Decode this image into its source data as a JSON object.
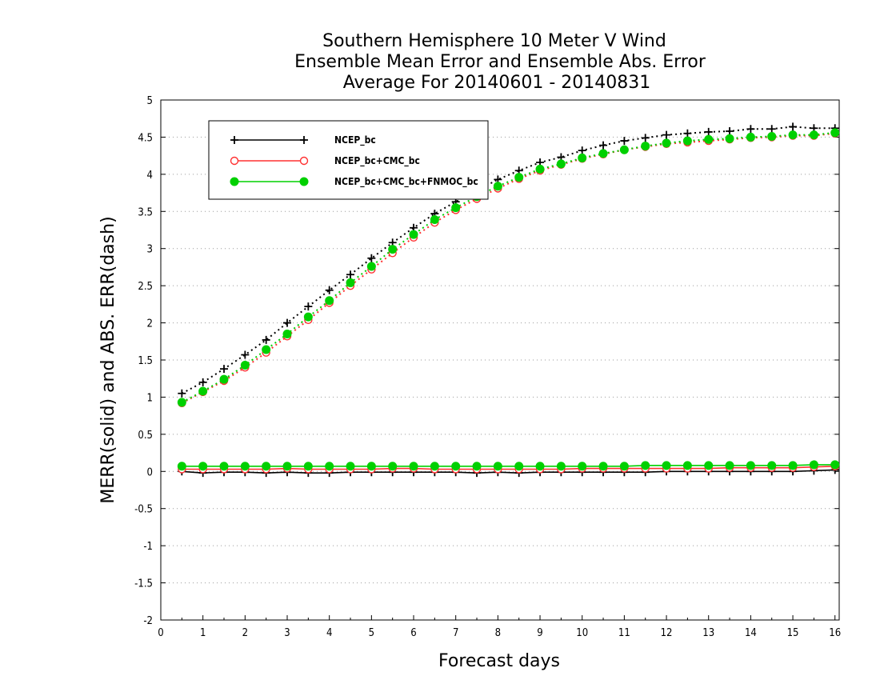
{
  "chart_data": {
    "type": "line",
    "title": [
      "Southern Hemisphere 10 Meter V Wind",
      "Ensemble Mean Error and Ensemble Abs. Error",
      "Average For 20140601 - 20140831"
    ],
    "xlabel": "Forecast days",
    "ylabel": "MERR(solid) and ABS. ERR(dash)",
    "xlim": [
      0,
      16.1
    ],
    "ylim": [
      -2,
      5
    ],
    "xticks": [
      0,
      1,
      2,
      3,
      4,
      5,
      6,
      7,
      8,
      9,
      10,
      11,
      12,
      13,
      14,
      15,
      16
    ],
    "yticks": [
      -2,
      -1.5,
      -1,
      -0.5,
      0,
      0.5,
      1,
      1.5,
      2,
      2.5,
      3,
      3.5,
      4,
      4.5,
      5
    ],
    "ytick_labels": [
      "-2",
      "-1.5",
      "-1",
      "-0.5",
      "0",
      "0.5",
      "1",
      "1.5",
      "2",
      "2.5",
      "3",
      "3.5",
      "4",
      "4.5",
      "5"
    ],
    "grid": "horizontal-dotted",
    "legend_position": "top-left",
    "x": [
      0.5,
      1,
      1.5,
      2,
      2.5,
      3,
      3.5,
      4,
      4.5,
      5,
      5.5,
      6,
      6.5,
      7,
      7.5,
      8,
      8.5,
      9,
      9.5,
      10,
      10.5,
      11,
      11.5,
      12,
      12.5,
      13,
      13.5,
      14,
      14.5,
      15,
      15.5,
      16
    ],
    "series": [
      {
        "name": "NCEP_bc",
        "color": "#000000",
        "marker": "plus",
        "abs_error": [
          1.05,
          1.2,
          1.38,
          1.57,
          1.77,
          2.0,
          2.22,
          2.44,
          2.65,
          2.87,
          3.08,
          3.28,
          3.47,
          3.63,
          3.78,
          3.93,
          4.05,
          4.16,
          4.23,
          4.32,
          4.39,
          4.45,
          4.49,
          4.53,
          4.55,
          4.57,
          4.58,
          4.61,
          4.61,
          4.64,
          4.62,
          4.62
        ],
        "mean_error": [
          0.0,
          -0.02,
          -0.01,
          -0.01,
          -0.02,
          -0.01,
          -0.02,
          -0.02,
          -0.01,
          -0.01,
          -0.01,
          -0.01,
          -0.01,
          -0.01,
          -0.02,
          -0.01,
          -0.02,
          -0.01,
          -0.01,
          -0.01,
          -0.01,
          -0.01,
          -0.01,
          0.0,
          0.0,
          0.0,
          0.0,
          0.0,
          0.0,
          0.0,
          0.01,
          0.02
        ]
      },
      {
        "name": "NCEP_bc+CMC_bc",
        "color": "#ff3030",
        "marker": "open-circle",
        "abs_error": [
          0.92,
          1.07,
          1.22,
          1.4,
          1.6,
          1.82,
          2.04,
          2.27,
          2.5,
          2.72,
          2.94,
          3.15,
          3.35,
          3.52,
          3.67,
          3.81,
          3.94,
          4.05,
          4.13,
          4.21,
          4.27,
          4.33,
          4.37,
          4.41,
          4.43,
          4.45,
          4.47,
          4.49,
          4.5,
          4.52,
          4.52,
          4.55
        ],
        "mean_error": [
          0.03,
          0.03,
          0.03,
          0.03,
          0.03,
          0.04,
          0.03,
          0.03,
          0.03,
          0.03,
          0.04,
          0.04,
          0.03,
          0.03,
          0.03,
          0.03,
          0.03,
          0.03,
          0.03,
          0.04,
          0.04,
          0.04,
          0.04,
          0.04,
          0.04,
          0.04,
          0.05,
          0.05,
          0.05,
          0.05,
          0.06,
          0.07
        ]
      },
      {
        "name": "NCEP_bc+CMC_bc+FNMOC_bc",
        "color": "#00d000",
        "marker": "filled-circle",
        "abs_error": [
          0.93,
          1.08,
          1.24,
          1.43,
          1.64,
          1.85,
          2.08,
          2.3,
          2.54,
          2.76,
          2.99,
          3.19,
          3.39,
          3.55,
          3.7,
          3.84,
          3.96,
          4.07,
          4.14,
          4.22,
          4.28,
          4.33,
          4.38,
          4.42,
          4.45,
          4.47,
          4.48,
          4.5,
          4.51,
          4.53,
          4.53,
          4.56
        ],
        "mean_error": [
          0.07,
          0.07,
          0.07,
          0.07,
          0.07,
          0.07,
          0.07,
          0.07,
          0.07,
          0.07,
          0.07,
          0.07,
          0.07,
          0.07,
          0.07,
          0.07,
          0.07,
          0.07,
          0.07,
          0.07,
          0.07,
          0.07,
          0.08,
          0.08,
          0.08,
          0.08,
          0.08,
          0.08,
          0.08,
          0.08,
          0.09,
          0.09
        ]
      }
    ]
  }
}
